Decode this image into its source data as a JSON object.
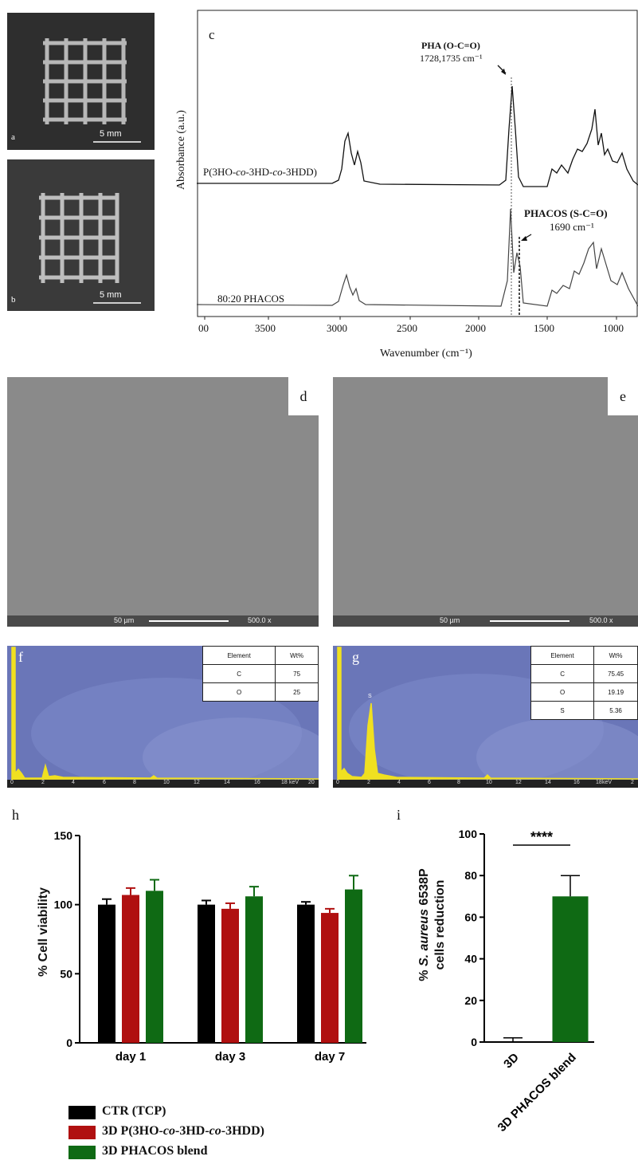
{
  "panels": {
    "a": {
      "letter": "a",
      "scale": "5 mm"
    },
    "b": {
      "letter": "b",
      "scale": "5 mm"
    },
    "c": {
      "letter": "c",
      "ylabel": "Absorbance (a.u.)",
      "xlabel": "Wavenumber (cm⁻¹)",
      "xticks": [
        "00",
        "3500",
        "3000",
        "2500",
        "2000",
        "1500",
        "1000"
      ],
      "series1_label_pre": "P(3HO-",
      "series1_label_co1": "co",
      "series1_label_mid": "-3HD-",
      "series1_label_co2": "co",
      "series1_label_post": "-3HDD)",
      "series2_label": "80:20 PHACOS",
      "annot1_title": "PHA (O-C=O)",
      "annot1_value": "1728,1735 cm⁻¹",
      "annot2_title": "PHACOS (S-C=O)",
      "annot2_value": "1690 cm⁻¹"
    },
    "d": {
      "letter": "d",
      "scale": "50 µm",
      "mag": "500.0 x"
    },
    "e": {
      "letter": "e",
      "scale": "50 µm",
      "mag": "500.0 x"
    },
    "f": {
      "letter": "f",
      "table_header": [
        "Element",
        "Wt%"
      ],
      "rows": [
        [
          "C",
          "75"
        ],
        [
          "O",
          "25"
        ]
      ],
      "axis_ticks": [
        "0",
        "2",
        "4",
        "6",
        "8",
        "10",
        "12",
        "14",
        "16",
        "18",
        "20"
      ],
      "unit": "keV"
    },
    "g": {
      "letter": "g",
      "table_header": [
        "Element",
        "Wt%"
      ],
      "rows": [
        [
          "C",
          "75.45"
        ],
        [
          "O",
          "19.19"
        ],
        [
          "S",
          "5.36"
        ]
      ],
      "axis_ticks": [
        "0",
        "2",
        "4",
        "6",
        "8",
        "10",
        "12",
        "14",
        "16",
        "18",
        "2"
      ],
      "unit": "keV",
      "peak_label": "S"
    },
    "h": {
      "letter": "h"
    },
    "i": {
      "letter": "i"
    }
  },
  "chart_data": [
    {
      "type": "bar",
      "panel": "h",
      "ylabel": "% Cell viability",
      "ylim": [
        0,
        150
      ],
      "yticks": [
        "0",
        "50",
        "100",
        "150"
      ],
      "categories": [
        "day 1",
        "day 3",
        "day 7"
      ],
      "series": [
        {
          "name": "CTR (TCP)",
          "color": "#000000",
          "values": [
            100,
            100,
            100
          ],
          "errors": [
            4,
            3,
            2
          ]
        },
        {
          "name": "3D P(3HO-co-3HD-co-3HDD)",
          "color": "#b01010",
          "values": [
            107,
            97,
            94
          ],
          "errors": [
            5,
            4,
            3
          ]
        },
        {
          "name": "3D PHACOS blend",
          "color": "#0f6a14",
          "values": [
            110,
            106,
            111
          ],
          "errors": [
            8,
            7,
            10
          ]
        }
      ],
      "legend": [
        {
          "label": "CTR (TCP)"
        },
        {
          "label_pre": "3D P(3HO-",
          "co1": "co",
          "mid": "-3HD-",
          "co2": "co",
          "post": "-3HDD)"
        },
        {
          "label": "3D PHACOS blend"
        }
      ]
    },
    {
      "type": "bar",
      "panel": "i",
      "ylabel_pre": "% ",
      "ylabel_italic": "S. aureus",
      "ylabel_post": " 6538P",
      "ylabel_line2": "cells reduction",
      "ylim": [
        0,
        100
      ],
      "yticks": [
        "0",
        "20",
        "40",
        "60",
        "80",
        "100"
      ],
      "categories": [
        "3D",
        "3D PHACOS blend"
      ],
      "values": [
        0,
        70
      ],
      "errors": [
        2,
        10
      ],
      "color": "#0f6a14",
      "significance": "****"
    }
  ]
}
